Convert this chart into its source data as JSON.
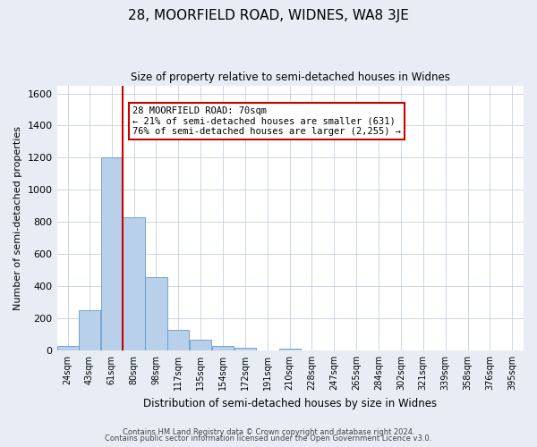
{
  "title": "28, MOORFIELD ROAD, WIDNES, WA8 3JE",
  "subtitle": "Size of property relative to semi-detached houses in Widnes",
  "xlabel": "Distribution of semi-detached houses by size in Widnes",
  "ylabel": "Number of semi-detached properties",
  "bin_labels": [
    "24sqm",
    "43sqm",
    "61sqm",
    "80sqm",
    "98sqm",
    "117sqm",
    "135sqm",
    "154sqm",
    "172sqm",
    "191sqm",
    "210sqm",
    "228sqm",
    "247sqm",
    "265sqm",
    "284sqm",
    "302sqm",
    "321sqm",
    "339sqm",
    "358sqm",
    "376sqm",
    "395sqm"
  ],
  "bin_left_edges": [
    15.5,
    33.5,
    52,
    70.5,
    89,
    107.5,
    126,
    144.5,
    163,
    181.5,
    200,
    218.5,
    237,
    255.5,
    274,
    292.5,
    311,
    329.5,
    348,
    366.5,
    385
  ],
  "bin_width": 18,
  "bin_values": [
    30,
    250,
    1200,
    830,
    455,
    130,
    65,
    25,
    15,
    0,
    10,
    0,
    0,
    0,
    0,
    0,
    0,
    0,
    0,
    0,
    0
  ],
  "property_line_x": 70.5,
  "bar_color": "#b8d0ea",
  "bar_edge_color": "#6899c8",
  "line_color": "#cc0000",
  "annotation_text": "28 MOORFIELD ROAD: 70sqm\n← 21% of semi-detached houses are smaller (631)\n76% of semi-detached houses are larger (2,255) →",
  "annotation_box_color": "#ffffff",
  "annotation_box_edge": "#cc0000",
  "ylim": [
    0,
    1650
  ],
  "yticks": [
    0,
    200,
    400,
    600,
    800,
    1000,
    1200,
    1400,
    1600
  ],
  "xlim_min": 15.5,
  "xlim_max": 403.5,
  "footer_line1": "Contains HM Land Registry data © Crown copyright and database right 2024.",
  "footer_line2": "Contains public sector information licensed under the Open Government Licence v3.0.",
  "bg_color": "#e8edf5",
  "plot_bg_color": "#ffffff",
  "grid_color": "#c5cfe0"
}
